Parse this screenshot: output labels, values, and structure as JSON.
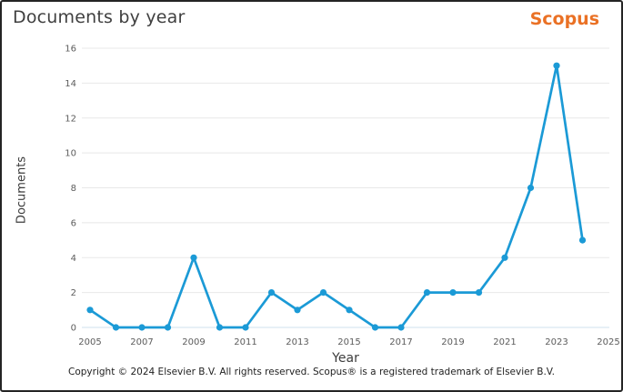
{
  "header": {
    "title": "Documents by year",
    "logo": "Scopus"
  },
  "chart_data": {
    "type": "line",
    "title": "Documents by year",
    "xlabel": "Year",
    "ylabel": "Documents",
    "x": [
      2005,
      2006,
      2007,
      2008,
      2009,
      2010,
      2011,
      2012,
      2013,
      2014,
      2015,
      2016,
      2017,
      2018,
      2019,
      2020,
      2021,
      2022,
      2023,
      2024
    ],
    "values": [
      1,
      0,
      0,
      0,
      4,
      0,
      0,
      2,
      1,
      2,
      1,
      0,
      0,
      2,
      2,
      2,
      4,
      8,
      15,
      5
    ],
    "xticks": [
      2005,
      2007,
      2009,
      2011,
      2013,
      2015,
      2017,
      2019,
      2021,
      2023,
      2025
    ],
    "yticks": [
      0,
      2,
      4,
      6,
      8,
      10,
      12,
      14,
      16
    ],
    "xlim": [
      2005,
      2025
    ],
    "ylim": [
      0,
      16
    ],
    "grid": true,
    "legend": "none",
    "line_color": "#1b9ad6",
    "marker": "circle"
  },
  "colors": {
    "accent_orange": "#ea7125",
    "line_blue": "#1b9ad6",
    "gridline": "#e8e8e8",
    "zero_line": "#cfe0ec",
    "tick_text": "#5c5c5c"
  },
  "footer": {
    "copyright": "Copyright © 2024 Elsevier B.V. All rights reserved. Scopus® is a registered trademark of Elsevier B.V."
  }
}
